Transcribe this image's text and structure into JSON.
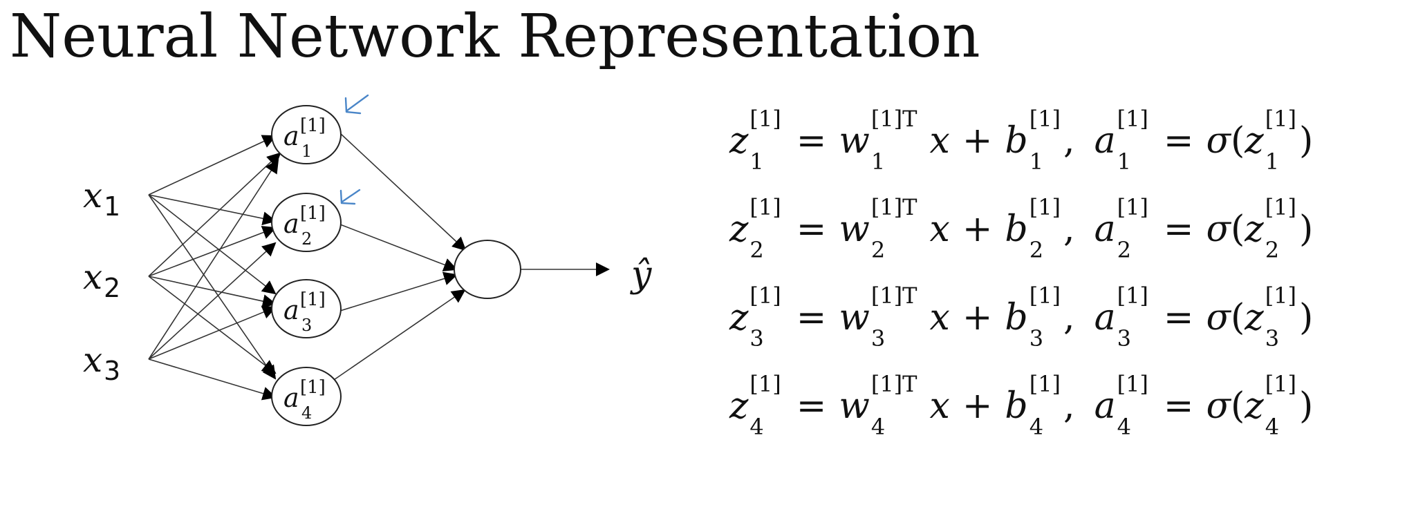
{
  "title": "Neural Network Representation",
  "inputs": [
    "x1",
    "x2",
    "x3"
  ],
  "input_labels": {
    "x": "x",
    "subs": [
      "1",
      "2",
      "3"
    ]
  },
  "hidden_nodes": [
    {
      "a": "a",
      "sup": "[1]",
      "sub": "1"
    },
    {
      "a": "a",
      "sup": "[1]",
      "sub": "2"
    },
    {
      "a": "a",
      "sup": "[1]",
      "sub": "3"
    },
    {
      "a": "a",
      "sup": "[1]",
      "sub": "4"
    }
  ],
  "output_label": "ŷ",
  "annotation_color": "#4a86c8",
  "equations": [
    {
      "z": "z",
      "w": "w",
      "b": "b",
      "a": "a",
      "x": "x",
      "sup": "[1]",
      "supT": "[1]T",
      "sub": "1",
      "eq": "=",
      "plus": "+",
      "sigma": "σ",
      "lparen": "(",
      "rparen": ")",
      "comma": ","
    },
    {
      "z": "z",
      "w": "w",
      "b": "b",
      "a": "a",
      "x": "x",
      "sup": "[1]",
      "supT": "[1]T",
      "sub": "2",
      "eq": "=",
      "plus": "+",
      "sigma": "σ",
      "lparen": "(",
      "rparen": ")",
      "comma": ","
    },
    {
      "z": "z",
      "w": "w",
      "b": "b",
      "a": "a",
      "x": "x",
      "sup": "[1]",
      "supT": "[1]T",
      "sub": "3",
      "eq": "=",
      "plus": "+",
      "sigma": "σ",
      "lparen": "(",
      "rparen": ")",
      "comma": ","
    },
    {
      "z": "z",
      "w": "w",
      "b": "b",
      "a": "a",
      "x": "x",
      "sup": "[1]",
      "supT": "[1]T",
      "sub": "4",
      "eq": "=",
      "plus": "+",
      "sigma": "σ",
      "lparen": "(",
      "rparen": ")",
      "comma": ","
    }
  ]
}
